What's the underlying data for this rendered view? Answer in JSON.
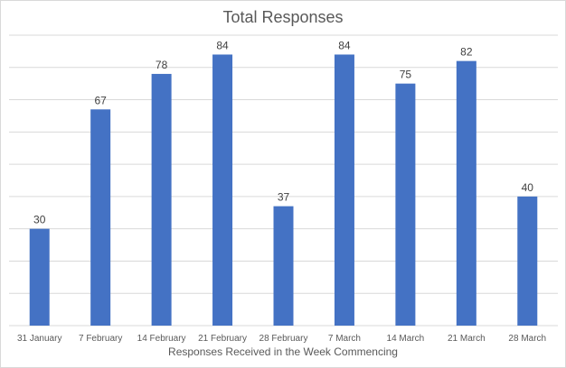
{
  "chart_data": {
    "type": "bar",
    "title": "Total Responses",
    "xlabel": "Responses Received in the Week Commencing",
    "ylabel": "",
    "categories": [
      "31 January",
      "7 February",
      "14 February",
      "21 February",
      "28 February",
      "7 March",
      "14 March",
      "21 March",
      "28 March"
    ],
    "values": [
      30,
      67,
      78,
      84,
      37,
      84,
      75,
      82,
      40
    ],
    "ylim": [
      0,
      90
    ],
    "grid": true,
    "data_labels": true,
    "bar_color": "#4472C4",
    "gridline_color": "#d9d9d9",
    "text_color": "#595959"
  }
}
